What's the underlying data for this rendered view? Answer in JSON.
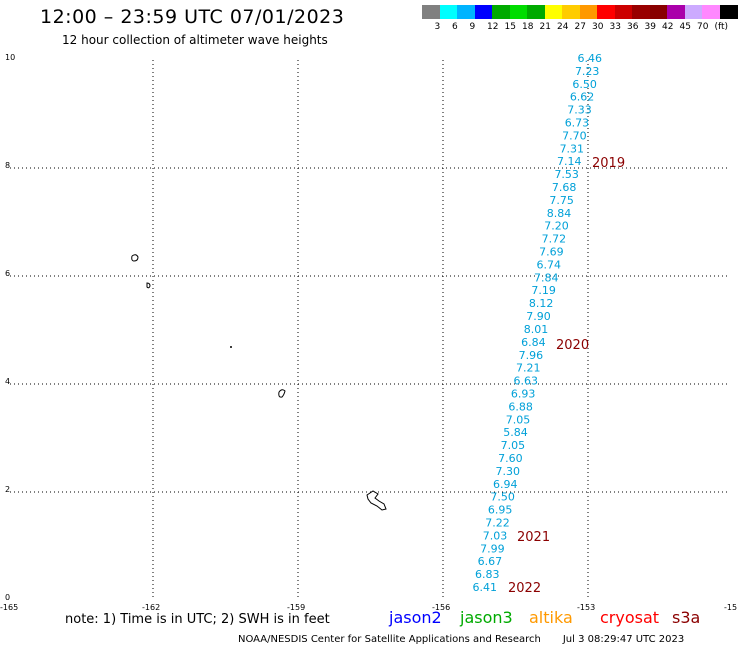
{
  "header": {
    "title": "12:00 – 23:59 UTC 07/01/2023",
    "subtitle": "12 hour collection of altimeter wave heights"
  },
  "legend": {
    "colors": [
      "#808080",
      "#00ffff",
      "#00b4ff",
      "#0000ff",
      "#00aa00",
      "#00dd00",
      "#00aa00",
      "#ffff00",
      "#ffcc00",
      "#ff9900",
      "#ff0000",
      "#cc0000",
      "#990000",
      "#880000",
      "#aa00aa",
      "#ccaaff",
      "#ff88ff",
      "#000000"
    ],
    "labels": [
      "3",
      "6",
      "9",
      "12",
      "15",
      "18",
      "21",
      "24",
      "27",
      "30",
      "33",
      "36",
      "39",
      "42",
      "45",
      "70",
      "(ft)"
    ]
  },
  "axes": {
    "x_ticks": [
      "-165",
      "-162",
      "-159",
      "-156",
      "-153",
      "-15"
    ],
    "y_ticks": [
      "10",
      "8",
      "6",
      "4",
      "2",
      "0"
    ]
  },
  "track": {
    "color": "#00a0d8",
    "values": [
      "6.46",
      "7.23",
      "6.50",
      "6.62",
      "7.33",
      "6.73",
      "7.70",
      "7.31",
      "7.14",
      "7.53",
      "7.68",
      "7.75",
      "8.84",
      "7.20",
      "7.72",
      "7.69",
      "6.74",
      "7.84",
      "7.19",
      "8.12",
      "7.90",
      "8.01",
      "6.84",
      "7.96",
      "7.21",
      "6.63",
      "6.93",
      "6.88",
      "7.05",
      "5.84",
      "7.05",
      "7.60",
      "7.30",
      "6.94",
      "7.50",
      "6.95",
      "7.22",
      "7.03",
      "7.99",
      "6.67",
      "6.83",
      "6.41"
    ]
  },
  "year_labels": {
    "color": "#8b0000",
    "items": [
      "2019",
      "2020",
      "2021",
      "2022"
    ]
  },
  "footer": {
    "note": "note:  1) Time is in UTC; 2) SWH is in feet",
    "satellites": [
      {
        "name": "jason2",
        "color": "#0000ff"
      },
      {
        "name": "jason3",
        "color": "#00aa00"
      },
      {
        "name": "altika",
        "color": "#ff9900"
      },
      {
        "name": "cryosat",
        "color": "#ff0000"
      },
      {
        "name": "s3a",
        "color": "#8b0000"
      }
    ],
    "credit": "NOAA/NESDIS Center for Satellite Applications and Research",
    "timestamp": "Jul  3 08:29:47 UTC 2023"
  }
}
